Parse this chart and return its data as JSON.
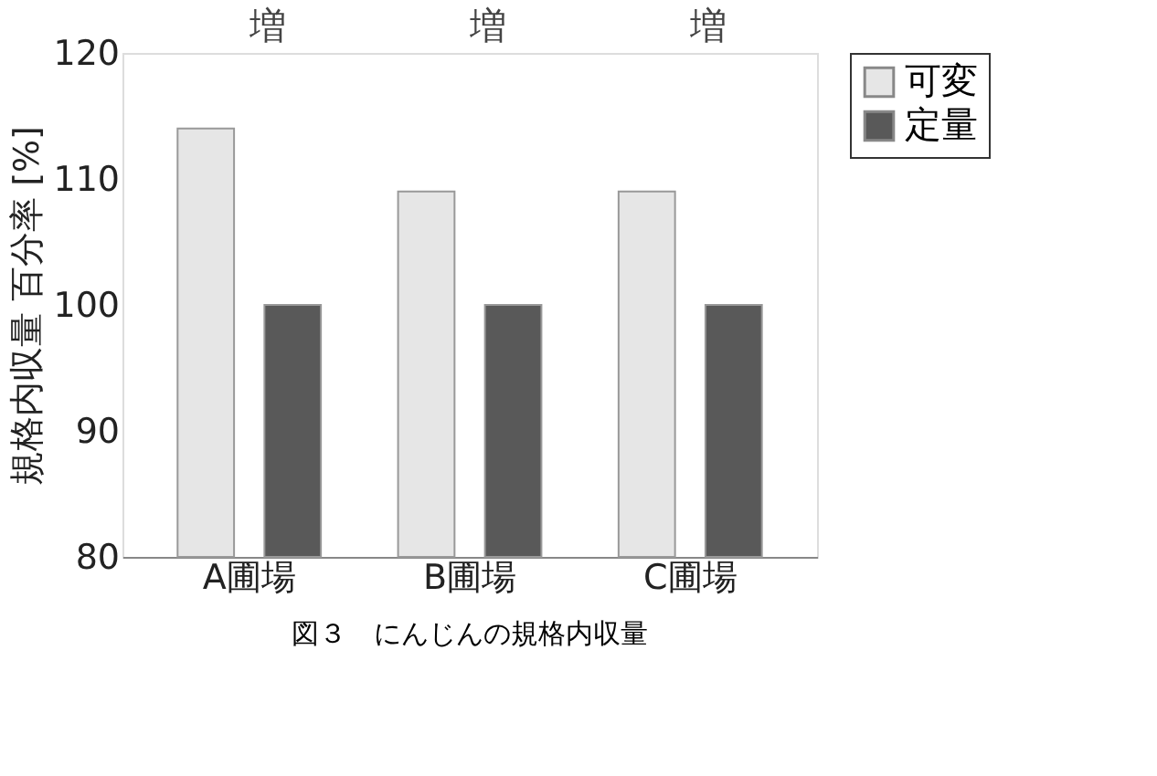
{
  "chart_data": {
    "type": "bar",
    "categories": [
      "A圃場",
      "B圃場",
      "C圃場"
    ],
    "series": [
      {
        "name": "可変",
        "color": "#e6e6e6",
        "values": [
          114,
          109,
          109
        ]
      },
      {
        "name": "定量",
        "color": "#595959",
        "values": [
          100,
          100,
          100
        ]
      }
    ],
    "ylabel": "規格内収量 百分率 [%]",
    "ylim": [
      80,
      120
    ],
    "yticks": [
      80,
      90,
      100,
      110,
      120
    ],
    "grid": false,
    "legend": "top right",
    "annotations": [
      "増",
      "増",
      "増",
      "図３　にんじんの規格内収量"
    ]
  }
}
